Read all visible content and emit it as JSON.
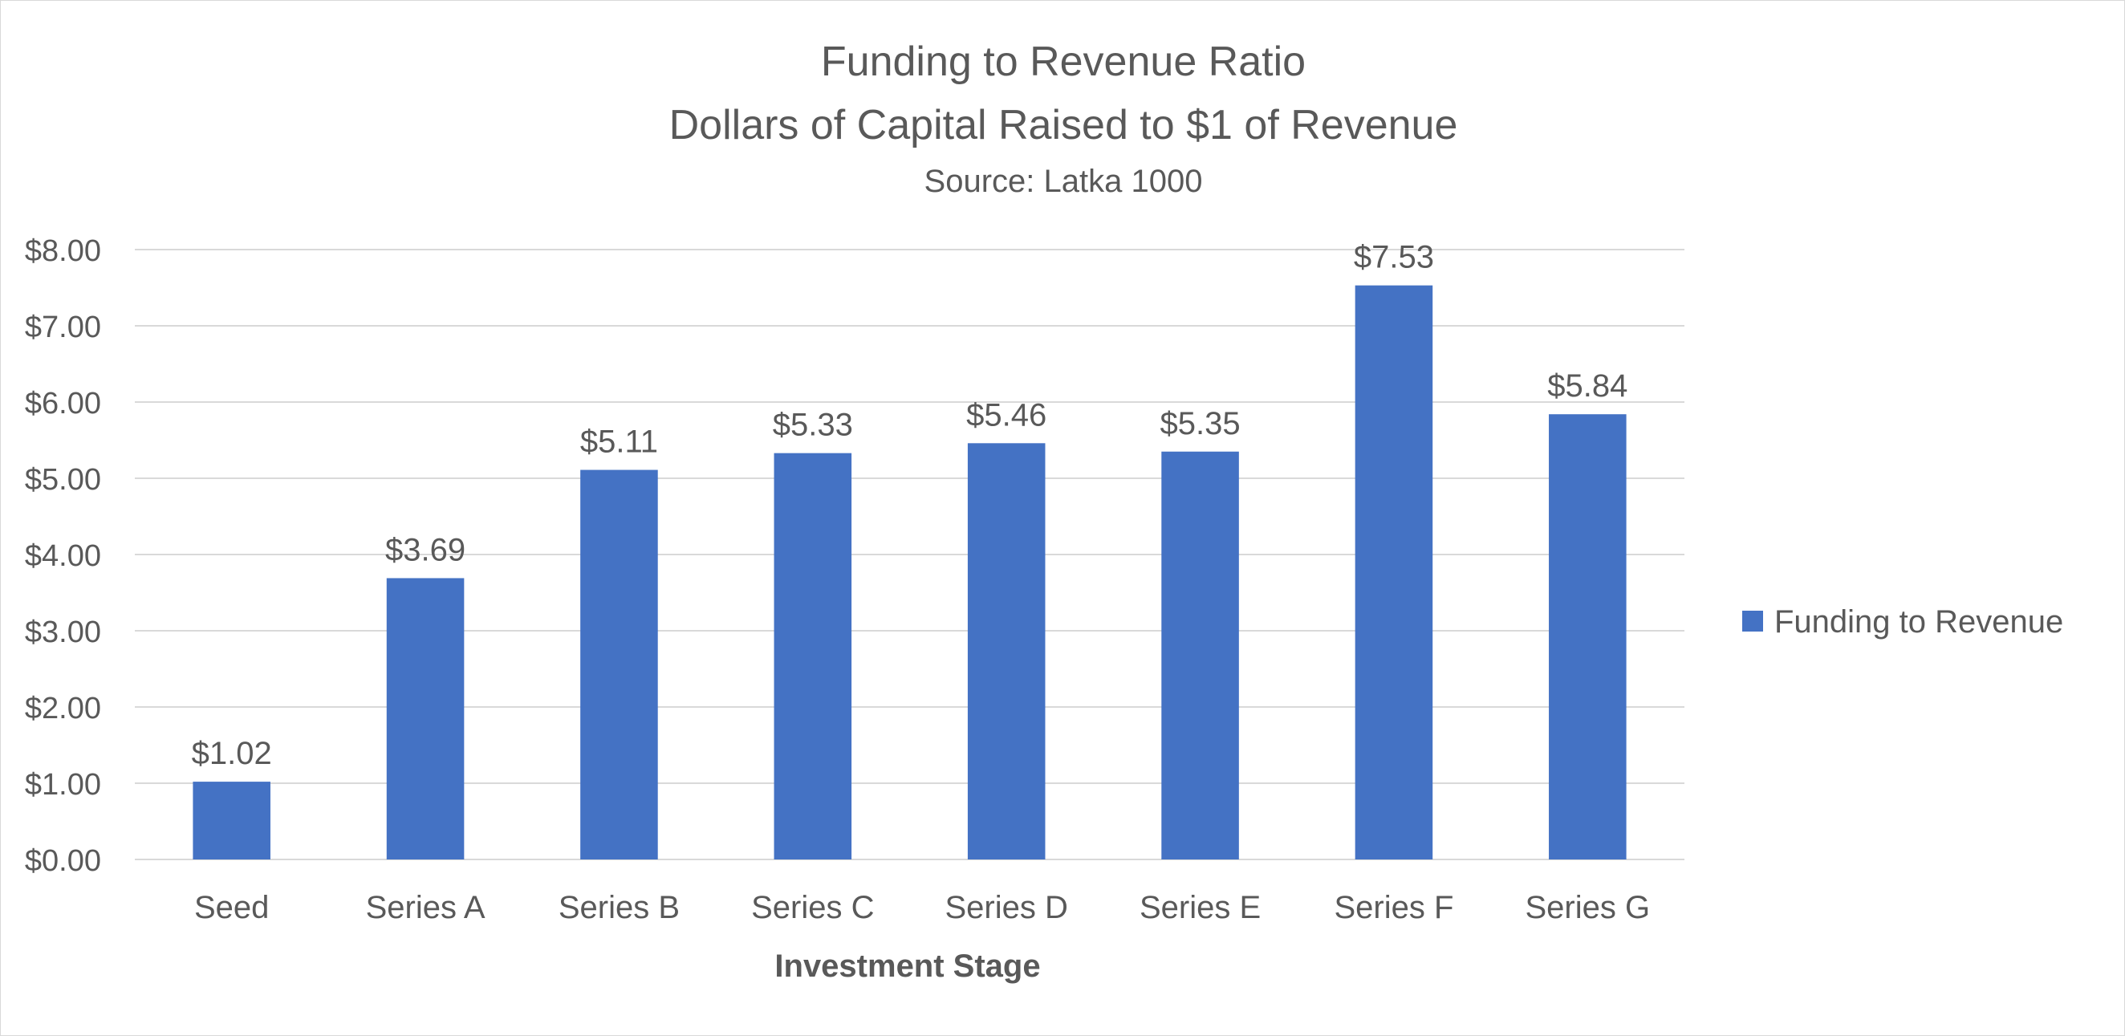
{
  "chart_data": {
    "type": "bar",
    "title": "Funding to Revenue Ratio",
    "subtitle": "Dollars of Capital Raised to $1 of Revenue",
    "source": "Source:  Latka 1000",
    "xlabel": "Investment Stage",
    "ylabel": "",
    "categories": [
      "Seed",
      "Series A",
      "Series B",
      "Series C",
      "Series D",
      "Series E",
      "Series F",
      "Series G"
    ],
    "series": [
      {
        "name": "Funding to Revenue",
        "values": [
          1.02,
          3.69,
          5.11,
          5.33,
          5.46,
          5.35,
          7.53,
          5.84
        ],
        "data_labels": [
          "$1.02",
          "$3.69",
          "$5.11",
          "$5.33",
          "$5.46",
          "$5.35",
          "$7.53",
          "$5.84"
        ],
        "color": "#4472C4"
      }
    ],
    "ylim": [
      0,
      8
    ],
    "yticks": [
      0,
      1,
      2,
      3,
      4,
      5,
      6,
      7,
      8
    ],
    "ytick_labels": [
      "$0.00",
      "$1.00",
      "$2.00",
      "$3.00",
      "$4.00",
      "$5.00",
      "$6.00",
      "$7.00",
      "$8.00"
    ],
    "grid": true,
    "legend": "right",
    "gridline_color": "#d9d9d9",
    "text_color": "#595959"
  }
}
